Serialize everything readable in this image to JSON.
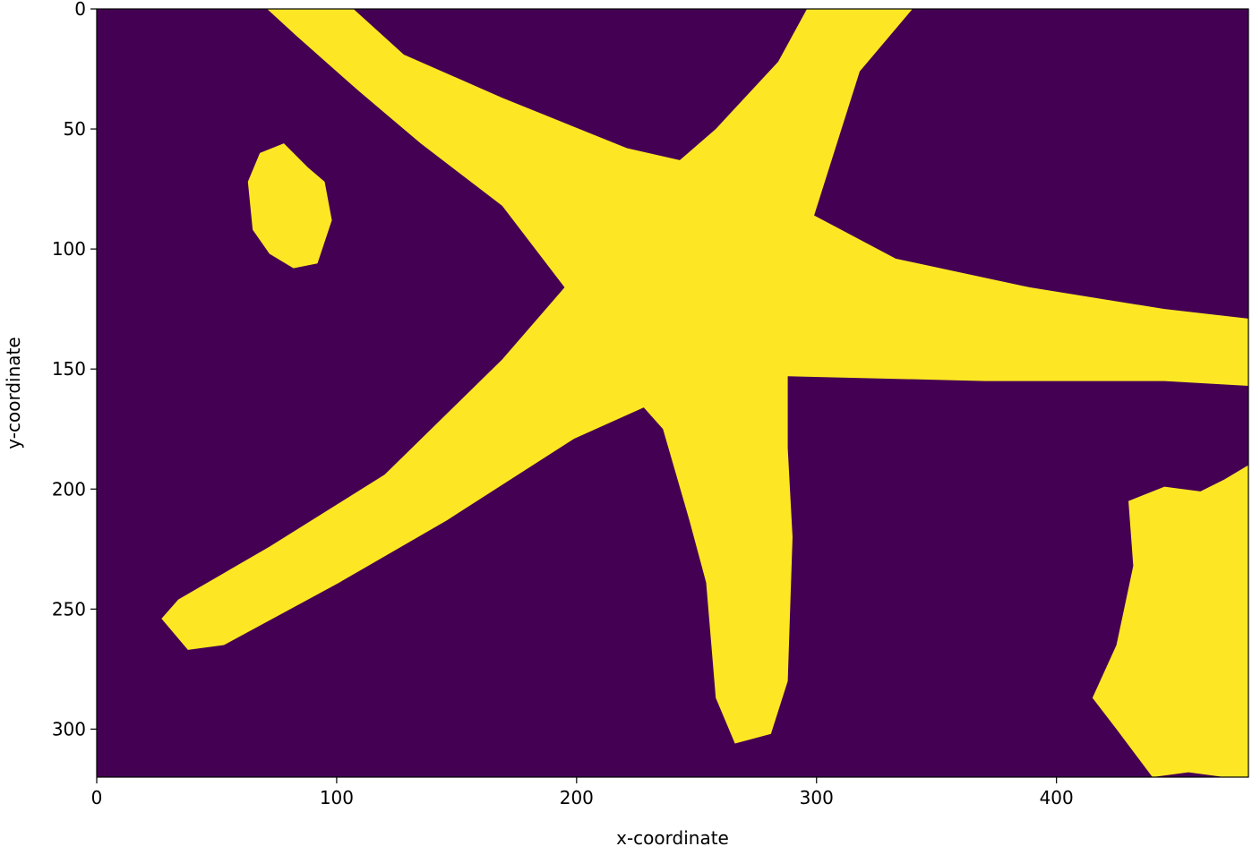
{
  "chart_data": {
    "type": "image",
    "xlabel": "x-coordinate",
    "ylabel": "y-coordinate",
    "xlim": [
      0,
      480
    ],
    "ylim": [
      320,
      0
    ],
    "xticks": [
      0,
      100,
      200,
      300,
      400
    ],
    "yticks": [
      0,
      50,
      100,
      150,
      200,
      250,
      300
    ],
    "background": "#440154",
    "color": "#fde725",
    "regions": [
      {
        "x": [
          71,
          107,
          128,
          169,
          221,
          243,
          258,
          284,
          296,
          340,
          318,
          299,
          333,
          389,
          445,
          480,
          480,
          445,
          370,
          288,
          288,
          290,
          288,
          281,
          266,
          258,
          254,
          247,
          236,
          228,
          199,
          146,
          101,
          53,
          38,
          27,
          34,
          72,
          120,
          169,
          195,
          169,
          135,
          109,
          83
        ],
        "y": [
          0,
          0,
          19,
          37,
          58,
          63,
          50,
          22,
          0,
          0,
          26,
          86,
          104,
          116,
          125,
          129,
          157,
          155,
          155,
          153,
          183,
          220,
          280,
          302,
          306,
          287,
          239,
          213,
          175,
          166,
          179,
          213,
          239,
          265,
          267,
          254,
          246,
          224,
          194,
          146,
          116,
          82,
          56,
          34,
          11
        ]
      },
      {
        "x": [
          68,
          78,
          88,
          95,
          98,
          92,
          82,
          72,
          65,
          63
        ],
        "y": [
          60,
          56,
          66,
          72,
          88,
          106,
          108,
          102,
          92,
          72
        ]
      },
      {
        "x": [
          430,
          445,
          460,
          470,
          480,
          480,
          470,
          455,
          440,
          425,
          415,
          425,
          432
        ],
        "y": [
          205,
          199,
          201,
          196,
          190,
          320,
          320,
          318,
          320,
          300,
          287,
          265,
          232
        ]
      }
    ]
  }
}
